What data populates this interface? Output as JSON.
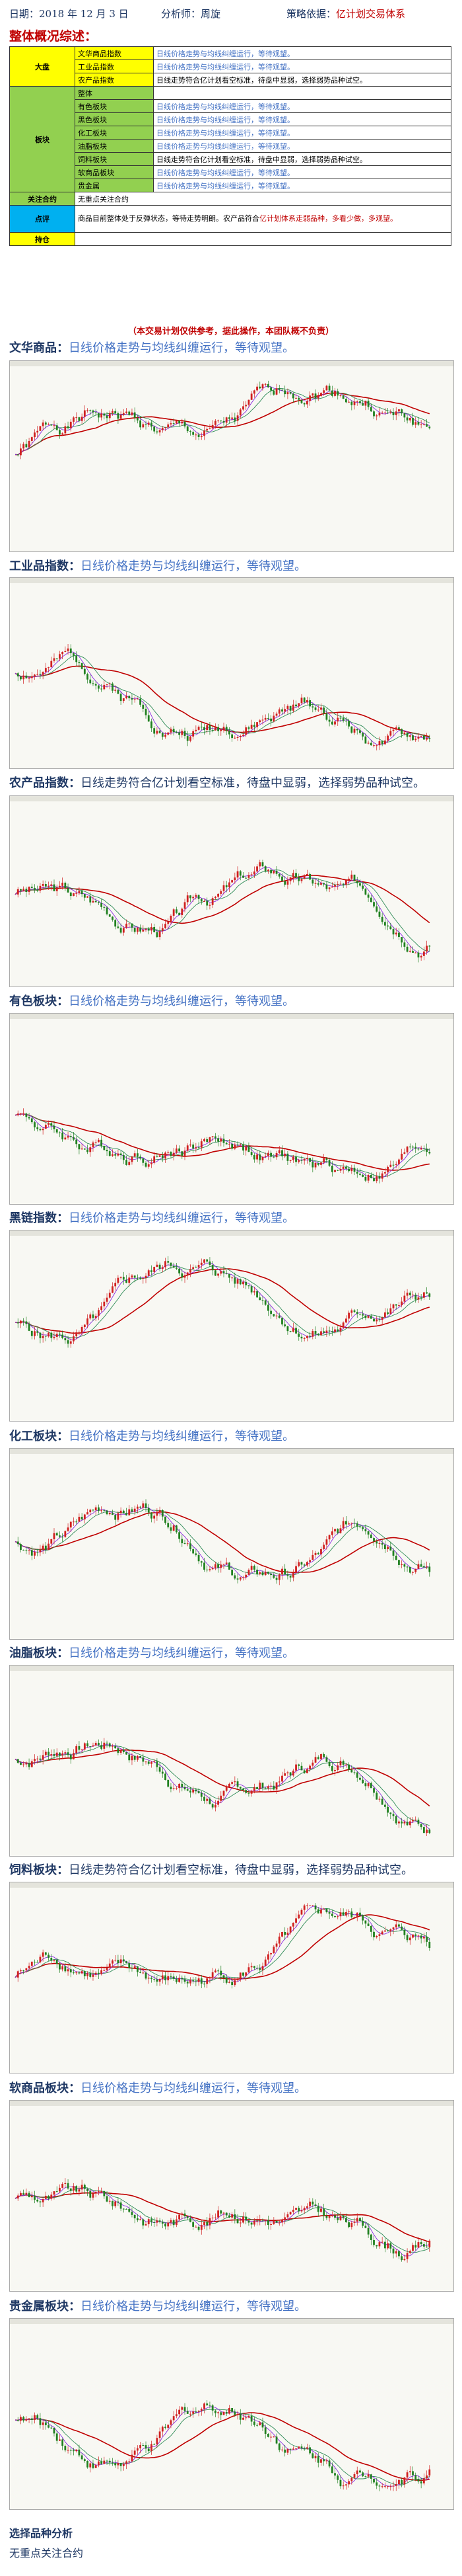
{
  "header": {
    "date": "日期：2018 年 12 月 3 日",
    "analyst": "分析师：周旋",
    "strategy_prefix": "策略依据：",
    "strategy": "亿计划交易体系"
  },
  "overview_title": "整体概况综述：",
  "overview": {
    "dapan_label": "大盘",
    "dapan_rows": [
      {
        "name": "文华商品指数",
        "status": "日线价格走势与均线纠缠运行，等待观望。"
      },
      {
        "name": "工业品指数",
        "status": "日线价格走势与均线纠缠运行，等待观望。"
      },
      {
        "name": "农产品指数",
        "status": "日线走势符合亿计划看空标准，待盘中显弱，选择弱势品种试空。"
      }
    ],
    "bankuai_label": "板块",
    "bankuai_rows": [
      {
        "name": "整体",
        "status": ""
      },
      {
        "name": "有色板块",
        "status": "日线价格走势与均线纠缠运行，等待观望。"
      },
      {
        "name": "黑色板块",
        "status": "日线价格走势与均线纠缠运行，等待观望。"
      },
      {
        "name": "化工板块",
        "status": "日线价格走势与均线纠缠运行，等待观望。"
      },
      {
        "name": "油脂板块",
        "status": "日线价格走势与均线纠缠运行，等待观望。"
      },
      {
        "name": "饲料板块",
        "status": "日线走势符合亿计划看空标准，待盘中显弱，选择弱势品种试空。"
      },
      {
        "name": "软商品板块",
        "status": "日线价格走势与均线纠缠运行，等待观望。"
      },
      {
        "name": "贵金属",
        "status": "日线价格走势与均线纠缠运行，等待观望。"
      }
    ],
    "focus_label": "关注合约",
    "focus_value": "无重点关注合约",
    "dianping_label": "点评",
    "dianping_black": "商品目前整体处于反弹状态，等待走势明朗。农产品符合",
    "dianping_red": "亿计划体系走弱品种，多看少做，多观望。",
    "chicang_label": "持仓",
    "chicang_value": ""
  },
  "disclaimer": "（本交易计划仅供参考，据此操作，本团队概不负责）",
  "sections": [
    {
      "name": "文华商品：",
      "text": "日线价格走势与均线纠缠运行，等待观望。"
    },
    {
      "name": "工业品指数：",
      "text": "日线价格走势与均线纠缠运行，等待观望。"
    },
    {
      "name": "农产品指数：",
      "text": "日线走势符合亿计划看空标准，待盘中显弱，选择弱势品种试空。"
    },
    {
      "name": "有色板块：",
      "text": "日线价格走势与均线纠缠运行，等待观望。"
    },
    {
      "name": "黑链指数：",
      "text": "日线价格走势与均线纠缠运行，等待观望。"
    },
    {
      "name": "化工板块：",
      "text": "日线价格走势与均线纠缠运行，等待观望。"
    },
    {
      "name": "油脂板块：",
      "text": "日线价格走势与均线纠缠运行，等待观望。"
    },
    {
      "name": "饲料板块：",
      "text": "日线走势符合亿计划看空标准，待盘中显弱，选择弱势品种试空。"
    },
    {
      "name": "软商品板块：",
      "text": "日线价格走势与均线纠缠运行，等待观望。"
    },
    {
      "name": "贵金属板块：",
      "text": "日线价格走势与均线纠缠运行，等待观望。"
    }
  ],
  "footer": {
    "title": "选择品种分析",
    "value": "无重点关注合约"
  },
  "colors": {
    "candle_up": "#d02020",
    "candle_down": "#208020",
    "ma_long": "#c00000",
    "ma_short": "#8a2be2",
    "ma_mid": "#2e8b57"
  }
}
